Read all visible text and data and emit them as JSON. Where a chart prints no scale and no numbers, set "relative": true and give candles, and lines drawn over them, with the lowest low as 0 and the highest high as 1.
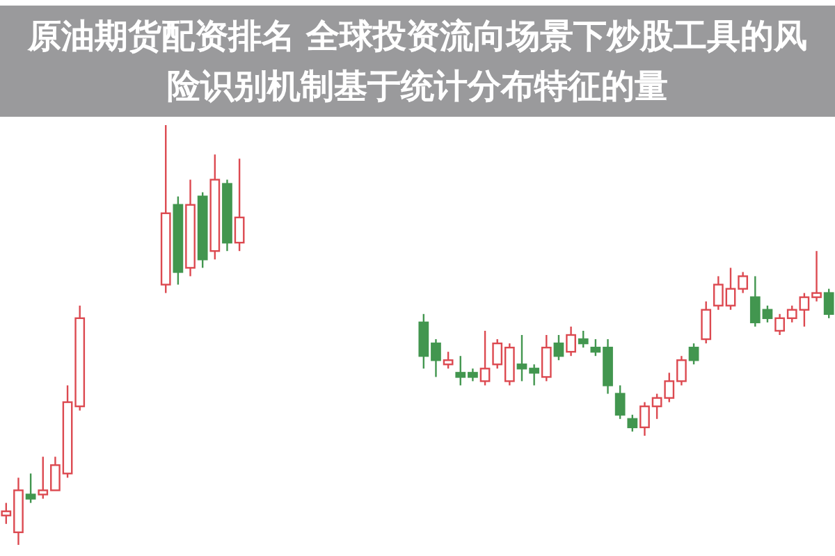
{
  "chart_data": {
    "type": "candlestick",
    "title": "原油期货配资排名 全球投资流向场景下炒股工具的风险识别机制基于统计分布特征的量",
    "relative": true,
    "categories": [
      null,
      null,
      null,
      null,
      null,
      null,
      null,
      null,
      null,
      null,
      null,
      null,
      null,
      null,
      null,
      null,
      null,
      null,
      null,
      null,
      null,
      null,
      null,
      null,
      null,
      null,
      null,
      null,
      null,
      null,
      null,
      null,
      null,
      null,
      null,
      null,
      null,
      null,
      null,
      null,
      null,
      null,
      null,
      null,
      null,
      null,
      null,
      null,
      null,
      null,
      null,
      null,
      null,
      null,
      null,
      null,
      null,
      null,
      null,
      null,
      null,
      null,
      null,
      null,
      null,
      null,
      null,
      null
    ],
    "ohlc": [
      [
        0.07,
        0.1,
        0.05,
        0.08
      ],
      [
        0.03,
        0.16,
        0,
        0.13
      ],
      [
        0.12,
        0.17,
        0.1,
        0.11
      ],
      [
        0.12,
        0.21,
        0.11,
        0.13
      ],
      [
        0.13,
        0.21,
        0.13,
        0.19
      ],
      [
        0.17,
        0.38,
        0.16,
        0.34
      ],
      [
        0.33,
        0.57,
        0.32,
        0.54
      ],
      null,
      null,
      null,
      null,
      null,
      null,
      [
        0.62,
        1.0,
        0.6,
        0.79
      ],
      [
        0.81,
        0.83,
        0.62,
        0.65
      ],
      [
        0.66,
        0.87,
        0.64,
        0.81
      ],
      [
        0.83,
        0.84,
        0.66,
        0.68
      ],
      [
        0.7,
        0.93,
        0.68,
        0.87
      ],
      [
        0.86,
        0.87,
        0.7,
        0.72
      ],
      [
        0.72,
        0.92,
        0.7,
        0.78
      ],
      null,
      null,
      null,
      null,
      null,
      null,
      null,
      null,
      null,
      null,
      null,
      null,
      null,
      null,
      [
        0.53,
        0.55,
        0.42,
        0.45
      ],
      [
        0.48,
        0.49,
        0.4,
        0.44
      ],
      [
        0.43,
        0.46,
        0.42,
        0.44
      ],
      [
        0.41,
        0.45,
        0.38,
        0.4
      ],
      [
        0.41,
        0.42,
        0.39,
        0.4
      ],
      [
        0.39,
        0.51,
        0.38,
        0.42
      ],
      [
        0.43,
        0.49,
        0.42,
        0.48
      ],
      [
        0.39,
        0.48,
        0.38,
        0.47
      ],
      [
        0.43,
        0.5,
        0.39,
        0.42
      ],
      [
        0.42,
        0.43,
        0.38,
        0.41
      ],
      [
        0.4,
        0.5,
        0.39,
        0.47
      ],
      [
        0.48,
        0.5,
        0.44,
        0.45
      ],
      [
        0.46,
        0.52,
        0.45,
        0.5
      ],
      [
        0.49,
        0.51,
        0.47,
        0.48
      ],
      [
        0.47,
        0.49,
        0.45,
        0.46
      ],
      [
        0.47,
        0.49,
        0.36,
        0.38
      ],
      [
        0.36,
        0.38,
        0.3,
        0.31
      ],
      [
        0.3,
        0.31,
        0.27,
        0.28
      ],
      [
        0.28,
        0.34,
        0.26,
        0.33
      ],
      [
        0.33,
        0.36,
        0.3,
        0.35
      ],
      [
        0.35,
        0.41,
        0.34,
        0.39
      ],
      [
        0.39,
        0.45,
        0.38,
        0.44
      ],
      [
        0.47,
        0.48,
        0.43,
        0.44
      ],
      [
        0.49,
        0.58,
        0.48,
        0.56
      ],
      [
        0.57,
        0.64,
        0.56,
        0.62
      ],
      [
        0.57,
        0.66,
        0.56,
        0.61
      ],
      [
        0.61,
        0.65,
        0.6,
        0.64
      ],
      [
        0.59,
        0.64,
        0.52,
        0.53
      ],
      [
        0.56,
        0.57,
        0.53,
        0.54
      ],
      [
        0.51,
        0.55,
        0.5,
        0.54
      ],
      [
        0.54,
        0.57,
        0.53,
        0.56
      ],
      [
        0.56,
        0.6,
        0.52,
        0.59
      ],
      [
        0.59,
        0.7,
        0.58,
        0.6
      ],
      [
        0.6,
        0.61,
        0.54,
        0.55
      ]
    ],
    "colors": [
      "#d9363e",
      "#d9363e",
      "#2e8b3c",
      "#d9363e",
      "#d9363e",
      "#d9363e",
      "#d9363e",
      null,
      null,
      null,
      null,
      null,
      null,
      "#d9363e",
      "#2e8b3c",
      "#d9363e",
      "#2e8b3c",
      "#d9363e",
      "#2e8b3c",
      "#d9363e",
      null,
      null,
      null,
      null,
      null,
      null,
      null,
      null,
      null,
      null,
      null,
      null,
      null,
      null,
      "#2e8b3c",
      "#2e8b3c",
      "#d9363e",
      "#2e8b3c",
      "#2e8b3c",
      "#d9363e",
      "#d9363e",
      "#d9363e",
      "#2e8b3c",
      "#2e8b3c",
      "#d9363e",
      "#2e8b3c",
      "#d9363e",
      "#2e8b3c",
      "#2e8b3c",
      "#2e8b3c",
      "#2e8b3c",
      "#2e8b3c",
      "#d9363e",
      "#d9363e",
      "#d9363e",
      "#d9363e",
      "#2e8b3c",
      "#d9363e",
      "#d9363e",
      "#d9363e",
      "#d9363e",
      "#2e8b3c",
      "#2e8b3c",
      "#d9363e",
      "#d9363e",
      "#d9363e",
      "#d9363e",
      "#2e8b3c"
    ]
  }
}
